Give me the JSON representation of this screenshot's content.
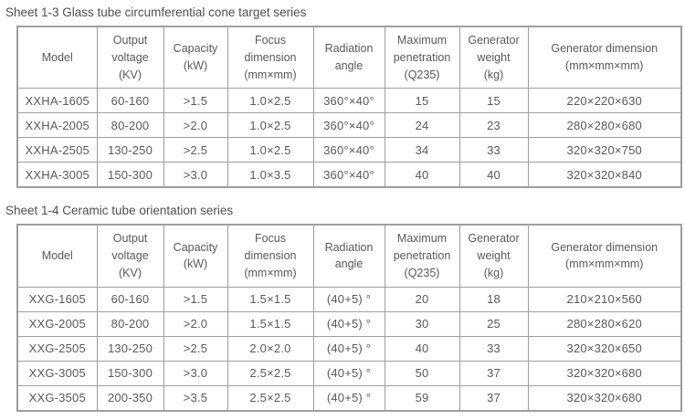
{
  "theme": {
    "background": "#ffffff",
    "text_color": "#595959",
    "border_color": "#9e9e9e"
  },
  "tables": [
    {
      "title": "Sheet 1-3 Glass tube circumferential cone target series",
      "headers": [
        "Model",
        "Output\nvoltage\n(KV)",
        "Capacity\n(kW)",
        "Focus\ndimension\n(mm×mm)",
        "Radiation\nangle",
        "Maximum\npenetration\n(Q235)",
        "Generator\nweight\n(kg)",
        "Generator dimension\n(mm×mm×mm)"
      ],
      "rows": [
        [
          "XXHA-1605",
          "60-160",
          ">1.5",
          "1.0×2.5",
          "360°×40°",
          "15",
          "15",
          "220×220×630"
        ],
        [
          "XXHA-2005",
          "80-200",
          ">2.0",
          "1.0×2.5",
          "360°×40°",
          "24",
          "23",
          "280×280×680"
        ],
        [
          "XXHA-2505",
          "130-250",
          ">2.5",
          "1.0×2.5",
          "360°×40°",
          "34",
          "33",
          "320×320×750"
        ],
        [
          "XXHA-3005",
          "150-300",
          ">3.0",
          "1.0×3.5",
          "360°×40°",
          "40",
          "40",
          "320×320×840"
        ]
      ]
    },
    {
      "title": "Sheet 1-4 Ceramic tube orientation series",
      "headers": [
        "Model",
        "Output\nvoltage\n(KV)",
        "Capacity\n(kW)",
        "Focus\ndimension\n(mm×mm)",
        "Radiation\nangle",
        "Maximum\npenetration\n(Q235)",
        "Generator\nweight\n(kg)",
        "Generator dimension\n(mm×mm×mm)"
      ],
      "rows": [
        [
          "XXG-1605",
          "60-160",
          ">1.5",
          "1.5×1.5",
          "(40+5) °",
          "20",
          "18",
          "210×210×560"
        ],
        [
          "XXG-2005",
          "80-200",
          ">2.0",
          "1.5×1.5",
          "(40+5) °",
          "30",
          "25",
          "280×280×620"
        ],
        [
          "XXG-2505",
          "130-250",
          ">2.5",
          "2.0×2.0",
          "(40+5) °",
          "40",
          "33",
          "320×320×650"
        ],
        [
          "XXG-3005",
          "150-300",
          ">3.0",
          "2.5×2.5",
          "(40+5) °",
          "50",
          "37",
          "320×320×680"
        ],
        [
          "XXG-3505",
          "200-350",
          ">3.5",
          "2.5×2.5",
          "(40+5) °",
          "59",
          "37",
          "320×320×680"
        ]
      ]
    }
  ]
}
